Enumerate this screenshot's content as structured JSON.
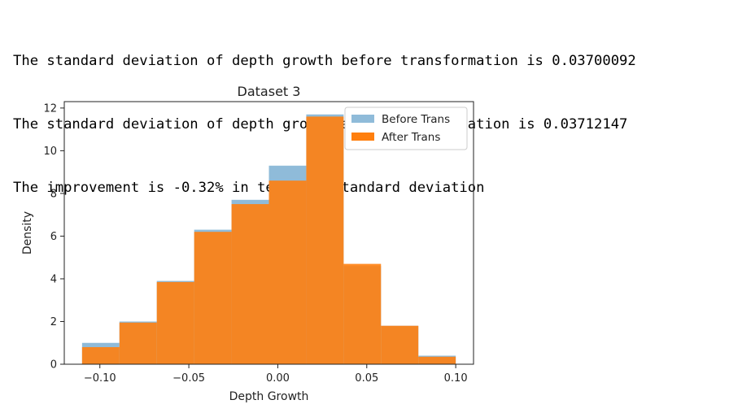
{
  "output": {
    "lines": [
      "The standard deviation of depth growth before transformation is 0.03700092",
      "The standard deviation of depth growth after transformation is 0.03712147",
      "The improvement is -0.32% in terms of standard deviation"
    ]
  },
  "chart_data": {
    "type": "bar",
    "title": "Dataset 3",
    "xlabel": "Depth Growth",
    "ylabel": "Density",
    "xlim": [
      -0.12,
      0.11
    ],
    "ylim": [
      0,
      12.3
    ],
    "xticks": [
      -0.1,
      -0.05,
      0.0,
      0.05,
      0.1
    ],
    "xtick_labels": [
      "−0.10",
      "−0.05",
      "0.00",
      "0.05",
      "0.10"
    ],
    "yticks": [
      0,
      2,
      4,
      6,
      8,
      10,
      12
    ],
    "ytick_labels": [
      "0",
      "2",
      "4",
      "6",
      "8",
      "10",
      "12"
    ],
    "bin_edges": [
      -0.11,
      -0.089,
      -0.068,
      -0.047,
      -0.026,
      -0.005,
      0.016,
      0.037,
      0.058,
      0.079,
      0.1
    ],
    "series": [
      {
        "name": "Before Trans",
        "color": "#8fbbd9",
        "values": [
          1.0,
          2.0,
          3.9,
          6.3,
          7.7,
          9.3,
          11.7,
          4.6,
          1.8,
          0.4
        ]
      },
      {
        "name": "After Trans",
        "color": "#ff7f0e",
        "values": [
          0.8,
          1.95,
          3.85,
          6.2,
          7.5,
          8.6,
          11.6,
          4.7,
          1.8,
          0.35
        ]
      }
    ],
    "legend": "upper-right",
    "grid": false
  }
}
